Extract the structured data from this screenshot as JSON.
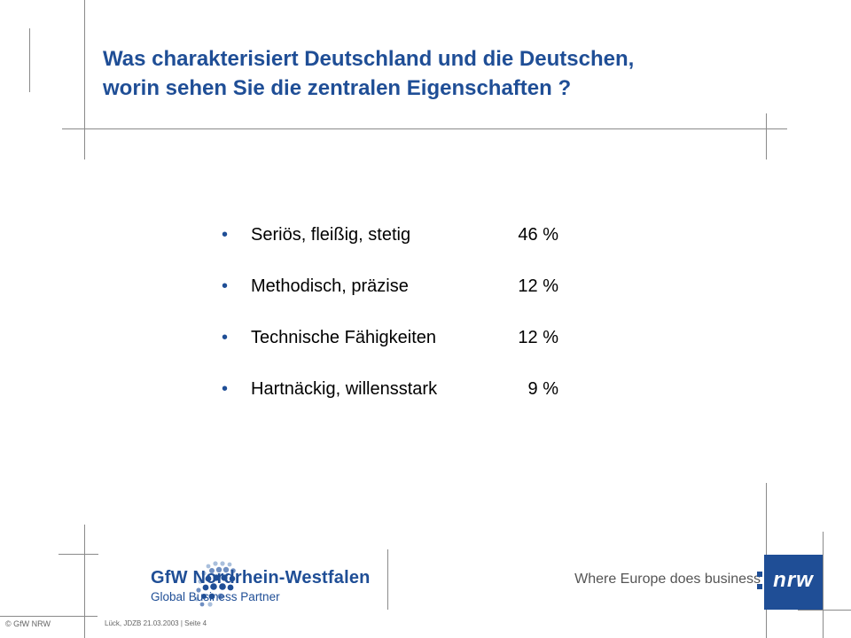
{
  "title": {
    "line1": "Was charakterisiert Deutschland und die Deutschen,",
    "line2": "worin sehen Sie die zentralen Eigenschaften ?"
  },
  "items": [
    {
      "label": "Seriös, fleißig, stetig",
      "value": "46 %"
    },
    {
      "label": "Methodisch, präzise",
      "value": "12 %"
    },
    {
      "label": "Technische Fähigkeiten",
      "value": "12 %"
    },
    {
      "label": "Hartnäckig, willensstark",
      "value": "9 %"
    }
  ],
  "bullet_symbol": "•",
  "logo": {
    "name": "GfW Nordrhein-Westfalen",
    "tagline": "Global Business Partner"
  },
  "brand": {
    "slogan": "Where Europe does business",
    "mark": "nrw",
    "color": "#1f4e96"
  },
  "footer": {
    "copyright": "© GfW NRW",
    "reference": "Lück, JDZB 21.03.2003 | Seite 4"
  }
}
